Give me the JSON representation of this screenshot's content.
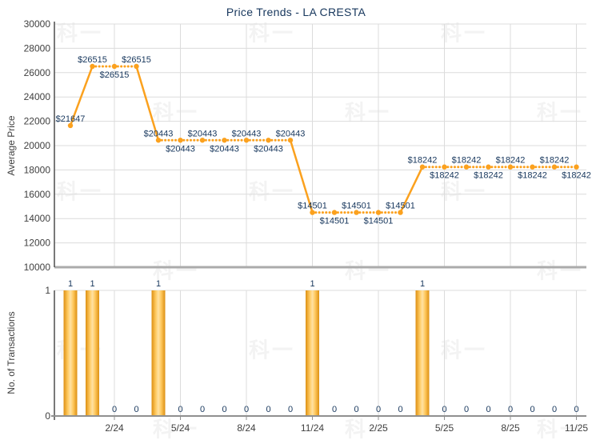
{
  "title": "Price Trends - LA CRESTA",
  "watermark": {
    "text": "科一"
  },
  "colors": {
    "line_orange": "#FBA11E",
    "bar_gradient_edge": "#DD9013",
    "bar_gradient_mid": "#FFC95F",
    "bar_gradient_center": "#FFE2A3",
    "label_navy": "#17375D",
    "axis_text_gray": "#404040",
    "grid": "#DCDCDC",
    "axis_heavy": "#ABABAB",
    "axis_dark": "#4D4D4D",
    "axis_mid": "#909090",
    "background": "#FFFFFF"
  },
  "chart_data": [
    {
      "type": "line",
      "title": "Price Trends - LA CRESTA",
      "ylabel": "Average Price",
      "ylim": [
        10000,
        30000
      ],
      "y_ticks": [
        30000,
        28000,
        26000,
        24000,
        22000,
        20000,
        18000,
        16000,
        14000,
        12000,
        10000
      ],
      "x_ticks": {
        "labels": [
          "2/24",
          "5/24",
          "8/24",
          "11/24",
          "2/25",
          "5/25",
          "8/25",
          "11/25"
        ],
        "indices": [
          2,
          5,
          8,
          11,
          14,
          17,
          20,
          23
        ]
      },
      "n_points": 24,
      "values": [
        21647,
        26515,
        26515,
        26515,
        20443,
        20443,
        20443,
        20443,
        20443,
        20443,
        20443,
        14501,
        14501,
        14501,
        14501,
        14501,
        18242,
        18242,
        18242,
        18242,
        18242,
        18242,
        18242,
        18242
      ],
      "data_label_prefix": "$",
      "label_side": [
        "above",
        "above",
        "below",
        "above",
        "above",
        "below",
        "above",
        "below",
        "above",
        "below",
        "above",
        "above",
        "below",
        "above",
        "below",
        "above",
        "above",
        "below",
        "above",
        "below",
        "above",
        "below",
        "above",
        "below"
      ],
      "line_color": "#FBA11E",
      "grid": "on",
      "flat_segments_dotted": true
    },
    {
      "type": "bar",
      "ylabel": "No. of Transactions",
      "ylim": [
        0,
        1
      ],
      "y_ticks": [
        1,
        0
      ],
      "x_ticks": {
        "labels": [
          "2/24",
          "5/24",
          "8/24",
          "11/24",
          "2/25",
          "5/25",
          "8/25",
          "11/25"
        ],
        "indices": [
          2,
          5,
          8,
          11,
          14,
          17,
          20,
          23
        ]
      },
      "n_points": 24,
      "values": [
        1,
        1,
        0,
        0,
        1,
        0,
        0,
        0,
        0,
        0,
        0,
        1,
        0,
        0,
        0,
        0,
        1,
        0,
        0,
        0,
        0,
        0,
        0,
        0
      ],
      "bar_color": "#F2A33C",
      "grid": "on"
    }
  ]
}
